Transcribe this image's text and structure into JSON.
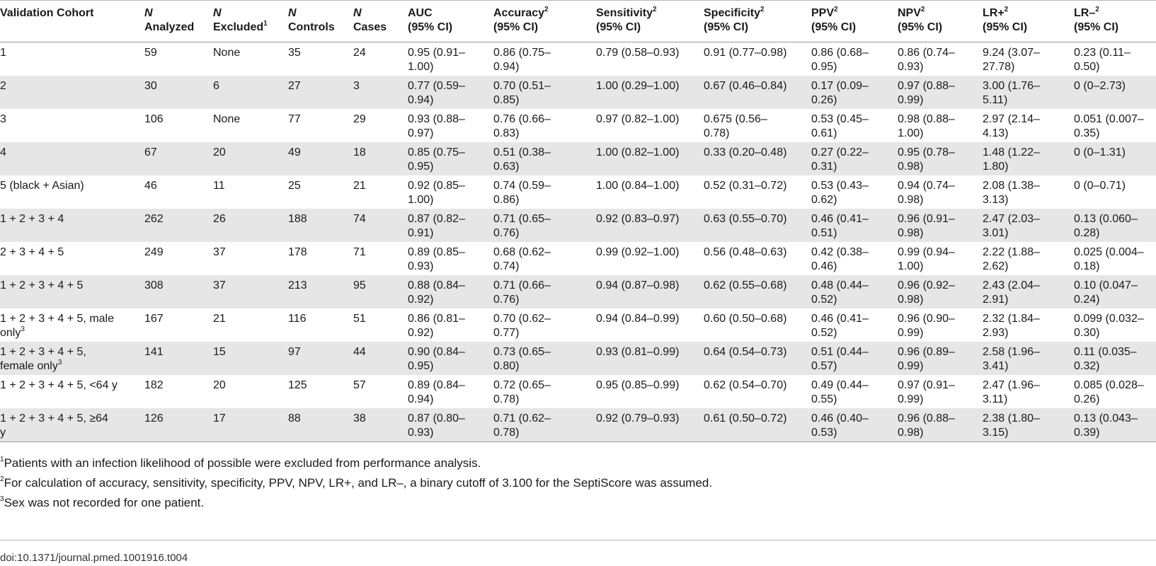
{
  "headers": [
    {
      "pre": "",
      "label": "Validation Cohort",
      "sup": "",
      "line2": ""
    },
    {
      "pre": "N",
      "label": "",
      "sup": "",
      "line2": "Analyzed"
    },
    {
      "pre": "N",
      "label": "",
      "sup": "",
      "line2": "Excluded",
      "sup2": "1"
    },
    {
      "pre": "N",
      "label": "",
      "sup": "",
      "line2": "Controls"
    },
    {
      "pre": "N",
      "label": "",
      "sup": "",
      "line2": "Cases"
    },
    {
      "pre": "",
      "label": "AUC",
      "sup": "",
      "line2": "(95% CI)"
    },
    {
      "pre": "",
      "label": "Accuracy",
      "sup": "2",
      "line2": "(95% CI)"
    },
    {
      "pre": "",
      "label": "Sensitivity",
      "sup": "2",
      "line2": "(95% CI)"
    },
    {
      "pre": "",
      "label": "Specificity",
      "sup": "2",
      "line2": "(95% CI)"
    },
    {
      "pre": "",
      "label": "PPV",
      "sup": "2",
      "line2": "(95% CI)"
    },
    {
      "pre": "",
      "label": "NPV",
      "sup": "2",
      "line2": "(95% CI)"
    },
    {
      "pre": "",
      "label": "LR+",
      "sup": "2",
      "line2": "(95% CI)"
    },
    {
      "pre": "",
      "label": "LR–",
      "sup": "2",
      "line2": "(95% CI)"
    }
  ],
  "rows": [
    {
      "cohort": "1",
      "cohort_sup": "",
      "cohort2": "",
      "analyzed": "59",
      "excluded": "None",
      "controls": "35",
      "cases": "24",
      "auc": [
        "0.95 (0.91–",
        "1.00)"
      ],
      "accuracy": [
        "0.86 (0.75–",
        "0.94)"
      ],
      "sensitivity": [
        "0.79 (0.58–0.93)",
        ""
      ],
      "specificity": [
        "0.91 (0.77–0.98)",
        ""
      ],
      "ppv": [
        "0.86 (0.68–",
        "0.95)"
      ],
      "npv": [
        "0.86 (0.74–",
        "0.93)"
      ],
      "lrp": [
        "9.24 (3.07–",
        "27.78)"
      ],
      "lrn": [
        "0.23 (0.11–",
        "0.50)"
      ]
    },
    {
      "cohort": "2",
      "cohort_sup": "",
      "cohort2": "",
      "analyzed": "30",
      "excluded": "6",
      "controls": "27",
      "cases": "3",
      "auc": [
        "0.77 (0.59–",
        "0.94)"
      ],
      "accuracy": [
        "0.70 (0.51–",
        "0.85)"
      ],
      "sensitivity": [
        "1.00 (0.29–1.00)",
        ""
      ],
      "specificity": [
        "0.67 (0.46–0.84)",
        ""
      ],
      "ppv": [
        "0.17 (0.09–",
        "0.26)"
      ],
      "npv": [
        "0.97 (0.88–",
        "0.99)"
      ],
      "lrp": [
        "3.00 (1.76–",
        "5.11)"
      ],
      "lrn": [
        "0 (0–2.73)",
        ""
      ]
    },
    {
      "cohort": "3",
      "cohort_sup": "",
      "cohort2": "",
      "analyzed": "106",
      "excluded": "None",
      "controls": "77",
      "cases": "29",
      "auc": [
        "0.93 (0.88–",
        "0.97)"
      ],
      "accuracy": [
        "0.76 (0.66–",
        "0.83)"
      ],
      "sensitivity": [
        "0.97 (0.82–1.00)",
        ""
      ],
      "specificity": [
        "0.675 (0.56–",
        "0.78)"
      ],
      "ppv": [
        "0.53 (0.45–",
        "0.61)"
      ],
      "npv": [
        "0.98 (0.88–",
        "1.00)"
      ],
      "lrp": [
        "2.97 (2.14–",
        "4.13)"
      ],
      "lrn": [
        "0.051 (0.007–",
        "0.35)"
      ]
    },
    {
      "cohort": "4",
      "cohort_sup": "",
      "cohort2": "",
      "analyzed": "67",
      "excluded": "20",
      "controls": "49",
      "cases": "18",
      "auc": [
        "0.85 (0.75–",
        "0.95)"
      ],
      "accuracy": [
        "0.51 (0.38–",
        "0.63)"
      ],
      "sensitivity": [
        "1.00 (0.82–1.00)",
        ""
      ],
      "specificity": [
        "0.33 (0.20–0.48)",
        ""
      ],
      "ppv": [
        "0.27 (0.22–",
        "0.31)"
      ],
      "npv": [
        "0.95 (0.78–",
        "0.98)"
      ],
      "lrp": [
        "1.48 (1.22–",
        "1.80)"
      ],
      "lrn": [
        "0 (0–1.31)",
        ""
      ]
    },
    {
      "cohort": "5 (black + Asian)",
      "cohort_sup": "",
      "cohort2": "",
      "analyzed": "46",
      "excluded": "11",
      "controls": "25",
      "cases": "21",
      "auc": [
        "0.92 (0.85–",
        "1.00)"
      ],
      "accuracy": [
        "0.74 (0.59–",
        "0.86)"
      ],
      "sensitivity": [
        "1.00 (0.84–1.00)",
        ""
      ],
      "specificity": [
        "0.52 (0.31–0.72)",
        ""
      ],
      "ppv": [
        "0.53 (0.43–",
        "0.62)"
      ],
      "npv": [
        "0.94 (0.74–",
        "0.98)"
      ],
      "lrp": [
        "2.08 (1.38–",
        "3.13)"
      ],
      "lrn": [
        "0 (0–0.71)",
        ""
      ]
    },
    {
      "cohort": "1 + 2 + 3 + 4",
      "cohort_sup": "",
      "cohort2": "",
      "analyzed": "262",
      "excluded": "26",
      "controls": "188",
      "cases": "74",
      "auc": [
        "0.87 (0.82–",
        "0.91)"
      ],
      "accuracy": [
        "0.71 (0.65–",
        "0.76)"
      ],
      "sensitivity": [
        "0.92 (0.83–0.97)",
        ""
      ],
      "specificity": [
        "0.63 (0.55–0.70)",
        ""
      ],
      "ppv": [
        "0.46 (0.41–",
        "0.51)"
      ],
      "npv": [
        "0.96 (0.91–",
        "0.98)"
      ],
      "lrp": [
        "2.47 (2.03–",
        "3.01)"
      ],
      "lrn": [
        "0.13 (0.060–",
        "0.28)"
      ]
    },
    {
      "cohort": "2 + 3 + 4 + 5",
      "cohort_sup": "",
      "cohort2": "",
      "analyzed": "249",
      "excluded": "37",
      "controls": "178",
      "cases": "71",
      "auc": [
        "0.89 (0.85–",
        "0.93)"
      ],
      "accuracy": [
        "0.68 (0.62–",
        "0.74)"
      ],
      "sensitivity": [
        "0.99 (0.92–1.00)",
        ""
      ],
      "specificity": [
        "0.56 (0.48–0.63)",
        ""
      ],
      "ppv": [
        "0.42 (0.38–",
        "0.46)"
      ],
      "npv": [
        "0.99 (0.94–",
        "1.00)"
      ],
      "lrp": [
        "2.22 (1.88–",
        "2.62)"
      ],
      "lrn": [
        "0.025 (0.004–",
        "0.18)"
      ]
    },
    {
      "cohort": "1 + 2 + 3 + 4 + 5",
      "cohort_sup": "",
      "cohort2": "",
      "analyzed": "308",
      "excluded": "37",
      "controls": "213",
      "cases": "95",
      "auc": [
        "0.88 (0.84–",
        "0.92)"
      ],
      "accuracy": [
        "0.71 (0.66–",
        "0.76)"
      ],
      "sensitivity": [
        "0.94 (0.87–0.98)",
        ""
      ],
      "specificity": [
        "0.62 (0.55–0.68)",
        ""
      ],
      "ppv": [
        "0.48 (0.44–",
        "0.52)"
      ],
      "npv": [
        "0.96 (0.92–",
        "0.98)"
      ],
      "lrp": [
        "2.43 (2.04–",
        "2.91)"
      ],
      "lrn": [
        "0.10 (0.047–",
        "0.24)"
      ]
    },
    {
      "cohort": "1 + 2 + 3 + 4 + 5, male",
      "cohort2": "only",
      "cohort_sup": "3",
      "analyzed": "167",
      "excluded": "21",
      "controls": "116",
      "cases": "51",
      "auc": [
        "0.86 (0.81–",
        "0.92)"
      ],
      "accuracy": [
        "0.70 (0.62–",
        "0.77)"
      ],
      "sensitivity": [
        "0.94 (0.84–0.99)",
        ""
      ],
      "specificity": [
        "0.60 (0.50–0.68)",
        ""
      ],
      "ppv": [
        "0.46 (0.41–",
        "0.52)"
      ],
      "npv": [
        "0.96 (0.90–",
        "0.99)"
      ],
      "lrp": [
        "2.32 (1.84–",
        "2.93)"
      ],
      "lrn": [
        "0.099 (0.032–",
        "0.30)"
      ]
    },
    {
      "cohort": "1 + 2 + 3 + 4 + 5,",
      "cohort2": "female only",
      "cohort_sup": "3",
      "analyzed": "141",
      "excluded": "15",
      "controls": "97",
      "cases": "44",
      "auc": [
        "0.90 (0.84–",
        "0.95)"
      ],
      "accuracy": [
        "0.73 (0.65–",
        "0.80)"
      ],
      "sensitivity": [
        "0.93 (0.81–0.99)",
        ""
      ],
      "specificity": [
        "0.64 (0.54–0.73)",
        ""
      ],
      "ppv": [
        "0.51 (0.44–",
        "0.57)"
      ],
      "npv": [
        "0.96 (0.89–",
        "0.99)"
      ],
      "lrp": [
        "2.58 (1.96–",
        "3.41)"
      ],
      "lrn": [
        "0.11 (0.035–",
        "0.32)"
      ]
    },
    {
      "cohort": "1 + 2 + 3 + 4 + 5, <64 y",
      "cohort_sup": "",
      "cohort2": "",
      "analyzed": "182",
      "excluded": "20",
      "controls": "125",
      "cases": "57",
      "auc": [
        "0.89 (0.84–",
        "0.94)"
      ],
      "accuracy": [
        "0.72 (0.65–",
        "0.78)"
      ],
      "sensitivity": [
        "0.95 (0.85–0.99)",
        ""
      ],
      "specificity": [
        "0.62 (0.54–0.70)",
        ""
      ],
      "ppv": [
        "0.49 (0.44–",
        "0.55)"
      ],
      "npv": [
        "0.97 (0.91–",
        "0.99)"
      ],
      "lrp": [
        "2.47 (1.96–",
        "3.11)"
      ],
      "lrn": [
        "0.085 (0.028–",
        "0.26)"
      ]
    },
    {
      "cohort": "1 + 2 + 3 + 4 + 5, ≥64",
      "cohort2": "y",
      "cohort_sup": "",
      "analyzed": "126",
      "excluded": "17",
      "controls": "88",
      "cases": "38",
      "auc": [
        "0.87 (0.80–",
        "0.93)"
      ],
      "accuracy": [
        "0.71 (0.62–",
        "0.78)"
      ],
      "sensitivity": [
        "0.92 (0.79–0.93)",
        ""
      ],
      "specificity": [
        "0.61 (0.50–0.72)",
        ""
      ],
      "ppv": [
        "0.46 (0.40–",
        "0.53)"
      ],
      "npv": [
        "0.96 (0.88–",
        "0.98)"
      ],
      "lrp": [
        "2.38 (1.80–",
        "3.15)"
      ],
      "lrn": [
        "0.13 (0.043–",
        "0.39)"
      ]
    }
  ],
  "footnotes": [
    {
      "num": "1",
      "text": "Patients with an infection likelihood of possible were excluded from performance analysis."
    },
    {
      "num": "2",
      "text": "For calculation of accuracy, sensitivity, specificity, PPV, NPV, LR+, and LR–, a binary cutoff of 3.100 for the SeptiScore was assumed."
    },
    {
      "num": "3",
      "text": "Sex was not recorded for one patient."
    }
  ],
  "doi": "doi:10.1371/journal.pmed.1001916.t004"
}
